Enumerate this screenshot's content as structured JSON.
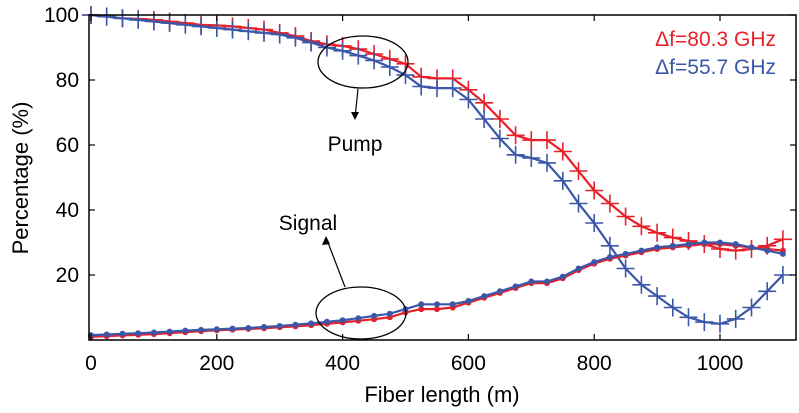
{
  "chart_data": {
    "type": "line",
    "title": "",
    "xlabel": "Fiber length (m)",
    "ylabel": "Percentage (%)",
    "xlim": [
      0,
      1130
    ],
    "ylim": [
      0,
      100
    ],
    "xticks": [
      0,
      200,
      400,
      600,
      800,
      1000
    ],
    "yticks": [
      20,
      40,
      60,
      80,
      100
    ],
    "grid": false,
    "legend_position": "top-right",
    "legend": [
      {
        "label": "Δf=80.3 GHz",
        "color": "#e8202a"
      },
      {
        "label": "Δf=55.7 GHz",
        "color": "#3b57a8"
      }
    ],
    "annotations": [
      {
        "text": "Pump"
      },
      {
        "text": "Signal"
      }
    ],
    "series": [
      {
        "name": "Pump Δf=80.3 GHz",
        "color": "#e8202a",
        "marker": "plus",
        "x": [
          0,
          25,
          50,
          75,
          100,
          125,
          150,
          175,
          200,
          225,
          250,
          275,
          300,
          325,
          350,
          375,
          400,
          425,
          450,
          475,
          500,
          525,
          550,
          575,
          600,
          625,
          650,
          675,
          700,
          725,
          750,
          775,
          800,
          825,
          850,
          875,
          900,
          925,
          950,
          975,
          1000,
          1025,
          1050,
          1075,
          1100,
          1125
        ],
        "y": [
          100,
          99.5,
          99,
          98.8,
          98.5,
          98,
          97.5,
          97,
          96.8,
          96.5,
          96,
          95.5,
          94.5,
          93.5,
          92,
          91,
          90.5,
          89.5,
          88,
          86.5,
          85,
          81,
          80.5,
          80.5,
          77,
          73,
          68,
          63,
          61.5,
          61.5,
          58,
          52,
          46,
          42,
          38,
          35,
          33,
          31.5,
          30.5,
          29.5,
          28,
          27.5,
          28,
          29,
          31,
          34.5
        ]
      },
      {
        "name": "Pump Δf=55.7 GHz",
        "color": "#3b57a8",
        "marker": "plus",
        "x": [
          0,
          25,
          50,
          75,
          100,
          125,
          150,
          175,
          200,
          225,
          250,
          275,
          300,
          325,
          350,
          375,
          400,
          425,
          450,
          475,
          500,
          525,
          550,
          575,
          600,
          625,
          650,
          675,
          700,
          725,
          750,
          775,
          800,
          825,
          850,
          875,
          900,
          925,
          950,
          975,
          1000,
          1025,
          1050,
          1075,
          1100,
          1125
        ],
        "y": [
          100,
          99.5,
          99,
          98.5,
          98,
          97.5,
          97,
          96.5,
          96,
          95.5,
          95,
          94.5,
          94,
          93,
          91.5,
          90,
          89,
          87.5,
          86,
          84,
          81.5,
          78,
          77.5,
          77.5,
          74,
          68,
          62,
          57,
          56,
          54.5,
          49,
          42,
          36,
          29,
          22,
          17,
          13.5,
          10,
          7,
          5.5,
          5,
          6.5,
          10,
          15,
          20,
          25
        ]
      },
      {
        "name": "Signal Δf=80.3 GHz",
        "color": "#e8202a",
        "marker": "dot",
        "x": [
          0,
          25,
          50,
          75,
          100,
          125,
          150,
          175,
          200,
          225,
          250,
          275,
          300,
          325,
          350,
          375,
          400,
          425,
          450,
          475,
          500,
          525,
          550,
          575,
          600,
          625,
          650,
          675,
          700,
          725,
          750,
          775,
          800,
          825,
          850,
          875,
          900,
          925,
          950,
          975,
          1000,
          1025,
          1050,
          1075,
          1100,
          1125
        ],
        "y": [
          1,
          1.2,
          1.4,
          1.6,
          1.8,
          2.1,
          2.4,
          2.7,
          3,
          3.2,
          3.4,
          3.6,
          3.9,
          4.2,
          4.6,
          5,
          5.4,
          5.9,
          6.4,
          7,
          8.5,
          9.5,
          9.5,
          10,
          11.5,
          13,
          14.5,
          16,
          17.5,
          17.5,
          19,
          21.5,
          23.5,
          25,
          26,
          27,
          28,
          28.5,
          29,
          29.5,
          29.5,
          29,
          28.5,
          28,
          27.5,
          27
        ]
      },
      {
        "name": "Signal Δf=55.7 GHz",
        "color": "#3b57a8",
        "marker": "dot",
        "x": [
          0,
          25,
          50,
          75,
          100,
          125,
          150,
          175,
          200,
          225,
          250,
          275,
          300,
          325,
          350,
          375,
          400,
          425,
          450,
          475,
          500,
          525,
          550,
          575,
          600,
          625,
          650,
          675,
          700,
          725,
          750,
          775,
          800,
          825,
          850,
          875,
          900,
          925,
          950,
          975,
          1000,
          1025,
          1050,
          1075,
          1100,
          1125
        ],
        "y": [
          1.5,
          1.7,
          1.9,
          2.1,
          2.3,
          2.6,
          2.9,
          3.1,
          3.3,
          3.5,
          3.7,
          4,
          4.3,
          4.7,
          5.1,
          5.6,
          6.1,
          6.7,
          7.4,
          8.1,
          9.5,
          11,
          11,
          11,
          12,
          13.5,
          15,
          16.5,
          18,
          18,
          19.5,
          22,
          24,
          25.5,
          26.5,
          27.5,
          28.5,
          29,
          29.5,
          30,
          30,
          29.5,
          28.5,
          27.5,
          26.5,
          25.5
        ]
      }
    ]
  }
}
